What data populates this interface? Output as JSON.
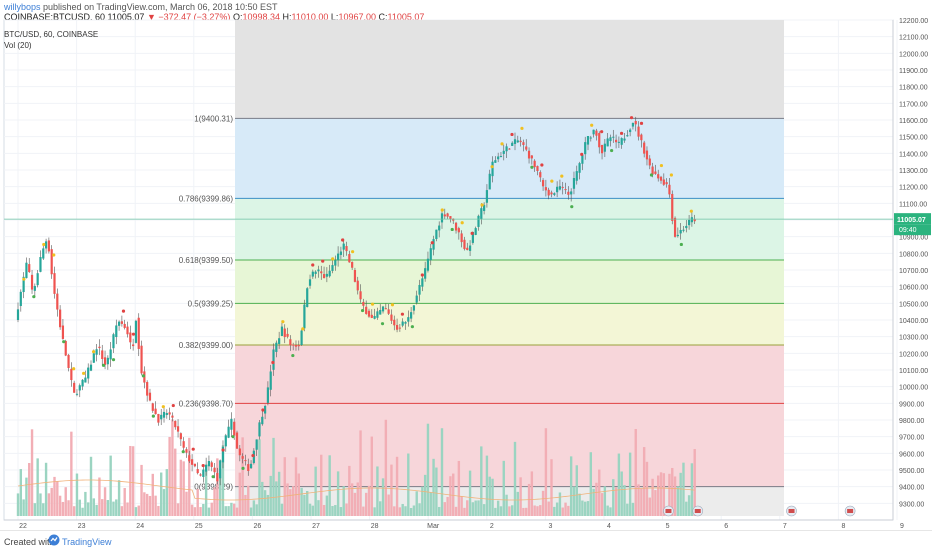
{
  "header": {
    "publisher": "willybops",
    "published_text": "published on TradingView.com, March 06, 2018 10:50 EST",
    "symbol": "COINBASE:BTCUSD, 60",
    "last": "11005.07",
    "change": "−372.47 (−3.27%)",
    "open_label": "O:",
    "open_value": "10998.34",
    "high_label": "H:",
    "high_value": "11010.00",
    "low_label": "L:",
    "low_value": "10967.00",
    "close_label": "C:",
    "close_value": "11005.07"
  },
  "footer": {
    "created_with": "Created with",
    "brand": "TradingView"
  },
  "chart_data": {
    "type": "candlestick",
    "title": "BTC/USD, 60, COINBASE",
    "indicator": "Vol (20)",
    "ylim": [
      9200,
      12200
    ],
    "y_ticks": [
      9300,
      9400,
      9500,
      9600,
      9700,
      9800,
      9900,
      10000,
      10100,
      10200,
      10300,
      10400,
      10500,
      10600,
      10700,
      10800,
      10900,
      11000,
      11100,
      11200,
      11300,
      11400,
      11500,
      11600,
      11700,
      11800,
      11900,
      12000,
      12100,
      12200
    ],
    "x_labels": [
      "22",
      "23",
      "24",
      "25",
      "26",
      "27",
      "28",
      "Mar",
      "2",
      "3",
      "4",
      "5",
      "6",
      "7",
      "8",
      "9"
    ],
    "last_price_label": "11005.07",
    "countdown_label": "09:40",
    "fib_levels": [
      {
        "label": "0(9398.29)",
        "price": 9400,
        "color": "#787b86"
      },
      {
        "label": "0.236(9398.70)",
        "price": 9900,
        "color": "#e04242"
      },
      {
        "label": "0.382(9399.00)",
        "price": 10250,
        "color": "#9aa03a"
      },
      {
        "label": "0.5(9399.25)",
        "price": 10500,
        "color": "#4caf50"
      },
      {
        "label": "0.618(9399.50)",
        "price": 10760,
        "color": "#4caf50"
      },
      {
        "label": "0.786(9399.86)",
        "price": 11130,
        "color": "#3b8fc6"
      },
      {
        "label": "1(9400.31)",
        "price": 11610,
        "color": "#787b86"
      }
    ],
    "price_path": [
      {
        "day": 0.0,
        "price": 10400
      },
      {
        "day": 0.2,
        "price": 10750
      },
      {
        "day": 0.3,
        "price": 10550
      },
      {
        "day": 0.45,
        "price": 10800
      },
      {
        "day": 0.55,
        "price": 10900
      },
      {
        "day": 0.65,
        "price": 10600
      },
      {
        "day": 0.8,
        "price": 10300
      },
      {
        "day": 1.0,
        "price": 9950
      },
      {
        "day": 1.2,
        "price": 10050
      },
      {
        "day": 1.4,
        "price": 10250
      },
      {
        "day": 1.55,
        "price": 10120
      },
      {
        "day": 1.75,
        "price": 10400
      },
      {
        "day": 1.9,
        "price": 10350
      },
      {
        "day": 2.0,
        "price": 10200
      },
      {
        "day": 2.05,
        "price": 10450
      },
      {
        "day": 2.15,
        "price": 10100
      },
      {
        "day": 2.3,
        "price": 9900
      },
      {
        "day": 2.45,
        "price": 9800
      },
      {
        "day": 2.6,
        "price": 9850
      },
      {
        "day": 2.75,
        "price": 9750
      },
      {
        "day": 2.9,
        "price": 9600
      },
      {
        "day": 3.0,
        "price": 9550
      },
      {
        "day": 3.15,
        "price": 9450
      },
      {
        "day": 3.3,
        "price": 9550
      },
      {
        "day": 3.45,
        "price": 9450
      },
      {
        "day": 3.55,
        "price": 9650
      },
      {
        "day": 3.7,
        "price": 9800
      },
      {
        "day": 3.8,
        "price": 9600
      },
      {
        "day": 3.9,
        "price": 9550
      },
      {
        "day": 4.0,
        "price": 9500
      },
      {
        "day": 4.15,
        "price": 9750
      },
      {
        "day": 4.3,
        "price": 9950
      },
      {
        "day": 4.4,
        "price": 10200
      },
      {
        "day": 4.55,
        "price": 10350
      },
      {
        "day": 4.7,
        "price": 10250
      },
      {
        "day": 4.85,
        "price": 10250
      },
      {
        "day": 5.0,
        "price": 10650
      },
      {
        "day": 5.15,
        "price": 10700
      },
      {
        "day": 5.3,
        "price": 10650
      },
      {
        "day": 5.45,
        "price": 10750
      },
      {
        "day": 5.6,
        "price": 10850
      },
      {
        "day": 5.75,
        "price": 10700
      },
      {
        "day": 5.9,
        "price": 10500
      },
      {
        "day": 6.1,
        "price": 10400
      },
      {
        "day": 6.3,
        "price": 10480
      },
      {
        "day": 6.5,
        "price": 10350
      },
      {
        "day": 6.7,
        "price": 10400
      },
      {
        "day": 6.85,
        "price": 10550
      },
      {
        "day": 7.0,
        "price": 10700
      },
      {
        "day": 7.15,
        "price": 10900
      },
      {
        "day": 7.3,
        "price": 11050
      },
      {
        "day": 7.45,
        "price": 11000
      },
      {
        "day": 7.6,
        "price": 10900
      },
      {
        "day": 7.7,
        "price": 10800
      },
      {
        "day": 7.85,
        "price": 10950
      },
      {
        "day": 8.0,
        "price": 11100
      },
      {
        "day": 8.15,
        "price": 11350
      },
      {
        "day": 8.3,
        "price": 11400
      },
      {
        "day": 8.45,
        "price": 11450
      },
      {
        "day": 8.6,
        "price": 11480
      },
      {
        "day": 8.75,
        "price": 11400
      },
      {
        "day": 8.9,
        "price": 11300
      },
      {
        "day": 9.0,
        "price": 11200
      },
      {
        "day": 9.15,
        "price": 11150
      },
      {
        "day": 9.3,
        "price": 11200
      },
      {
        "day": 9.45,
        "price": 11150
      },
      {
        "day": 9.6,
        "price": 11300
      },
      {
        "day": 9.75,
        "price": 11480
      },
      {
        "day": 9.9,
        "price": 11550
      },
      {
        "day": 10.0,
        "price": 11400
      },
      {
        "day": 10.15,
        "price": 11500
      },
      {
        "day": 10.3,
        "price": 11450
      },
      {
        "day": 10.45,
        "price": 11530
      },
      {
        "day": 10.55,
        "price": 11600
      },
      {
        "day": 10.7,
        "price": 11450
      },
      {
        "day": 10.85,
        "price": 11300
      },
      {
        "day": 11.0,
        "price": 11250
      },
      {
        "day": 11.15,
        "price": 11200
      },
      {
        "day": 11.25,
        "price": 10900
      },
      {
        "day": 11.4,
        "price": 10950
      },
      {
        "day": 11.55,
        "price": 11005
      }
    ],
    "colors": {
      "up": "#26a69a",
      "down": "#ef5350",
      "wick": "#555555",
      "vol_up": "#9bd4c1",
      "vol_down": "#f2aeb5",
      "grid": "#f0f3f7",
      "bg_shade": "#e3e3e3",
      "fib_top": "#d7eaf8",
      "fib_mid_upper": "#dcf5e6",
      "fib_mid": "#e7f6d6",
      "fib_low_mid": "#f3f6d6",
      "fib_low": "#f7d6da",
      "vol_ma": "#f0b27a",
      "buy_marker": "#4caf50",
      "sell_marker": "#e04242",
      "top_marker": "#f0c020",
      "price_label_bg": "#2bb37e"
    }
  }
}
